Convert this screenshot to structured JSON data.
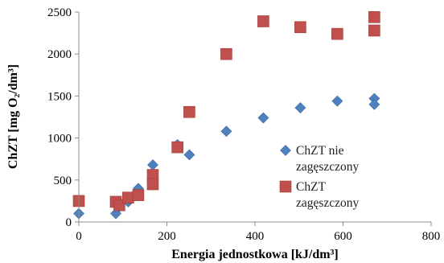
{
  "chart_data": {
    "type": "scatter",
    "xlabel": "Energia jednostkowa [kJ/dm³]",
    "ylabel": "ChZT [mg O₂/dm³]",
    "xlim": [
      0,
      800
    ],
    "ylim": [
      0,
      2500
    ],
    "x_ticks": [
      "0",
      "200",
      "400",
      "600",
      "800"
    ],
    "y_ticks": [
      "0",
      "500",
      "1000",
      "1500",
      "2000",
      "2500"
    ],
    "grid": false,
    "legend_position": "right",
    "series": [
      {
        "name_lines": [
          "ChZT nie",
          "zagęszczony"
        ],
        "marker": "diamond",
        "color": "#4f81bd",
        "points": [
          [
            0,
            100
          ],
          [
            84,
            100
          ],
          [
            92,
            180
          ],
          [
            112,
            240
          ],
          [
            135,
            400
          ],
          [
            168,
            680
          ],
          [
            224,
            920
          ],
          [
            251,
            800
          ],
          [
            335,
            1080
          ],
          [
            419,
            1240
          ],
          [
            503,
            1360
          ],
          [
            587,
            1440
          ],
          [
            671,
            1470
          ],
          [
            671,
            1400
          ]
        ]
      },
      {
        "name_lines": [
          "ChZT",
          "zagęszczony"
        ],
        "marker": "square",
        "color": "#c0504d",
        "points": [
          [
            0,
            250
          ],
          [
            84,
            240
          ],
          [
            92,
            200
          ],
          [
            112,
            290
          ],
          [
            135,
            320
          ],
          [
            168,
            560
          ],
          [
            168,
            450
          ],
          [
            224,
            890
          ],
          [
            251,
            1310
          ],
          [
            335,
            2000
          ],
          [
            419,
            2390
          ],
          [
            503,
            2320
          ],
          [
            587,
            2240
          ],
          [
            671,
            2440
          ],
          [
            671,
            2280
          ]
        ]
      }
    ]
  }
}
